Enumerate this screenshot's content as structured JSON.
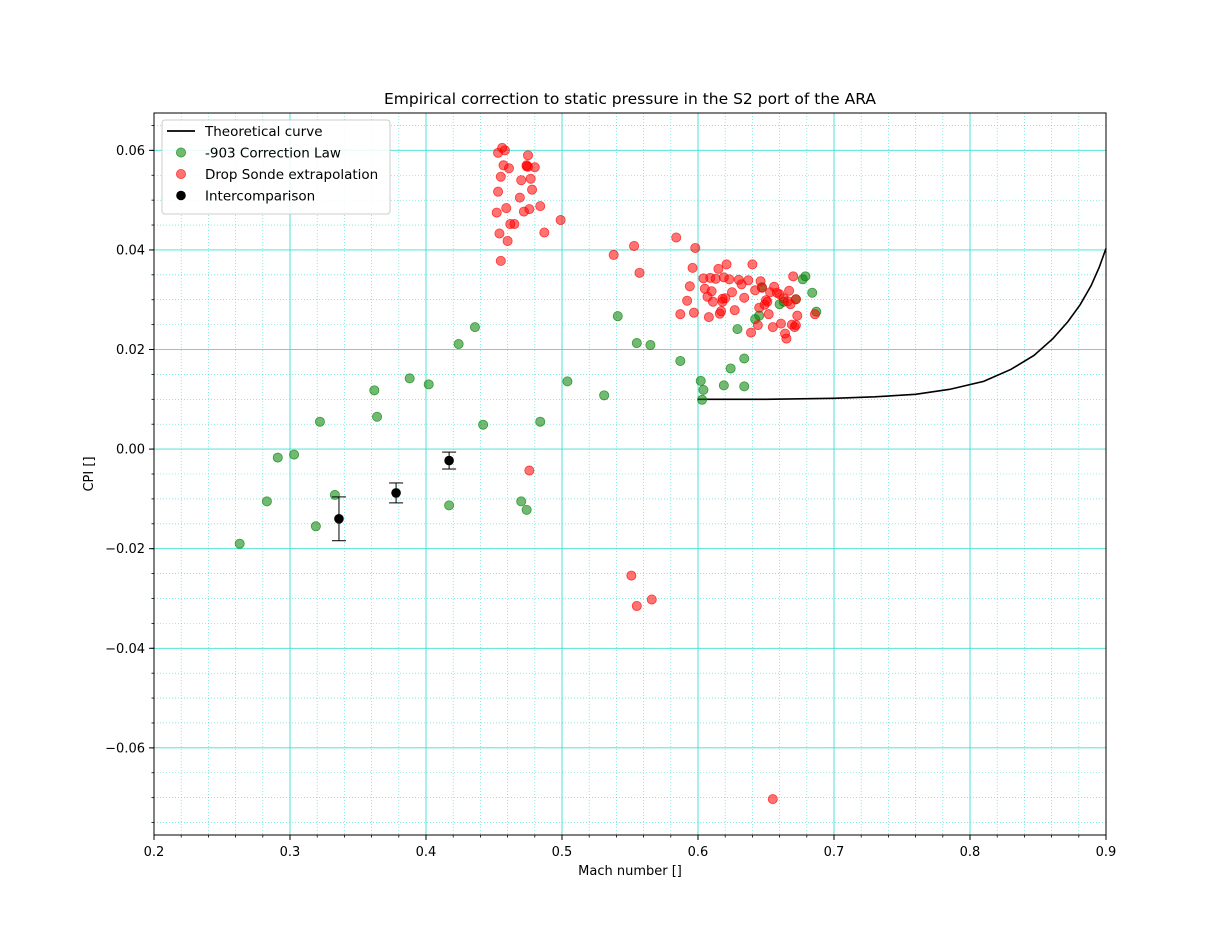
{
  "chart_data": {
    "type": "scatter",
    "title": "Empirical correction to static pressure in the S2 port of the ARA",
    "xlabel": "Mach number []",
    "ylabel": "CPI []",
    "xlim": [
      0.2,
      0.9
    ],
    "ylim": [
      -0.0775,
      0.0675
    ],
    "xticks": [
      0.2,
      0.3,
      0.4,
      0.5,
      0.6,
      0.7,
      0.8,
      0.9
    ],
    "yticks": [
      -0.06,
      -0.04,
      -0.02,
      0.0,
      0.02,
      0.04,
      0.06
    ],
    "xtick_labels": [
      "0.2",
      "0.3",
      "0.4",
      "0.5",
      "0.6",
      "0.7",
      "0.8",
      "0.9"
    ],
    "ytick_labels": [
      "−0.06",
      "−0.04",
      "−0.02",
      "0.00",
      "0.02",
      "0.04",
      "0.06"
    ],
    "grid": true,
    "legend_position": "top-left",
    "colors": {
      "grid": "#40e0d0",
      "theoretical": "#000000",
      "correction": "#008000",
      "dropsonde": "#ff0000",
      "intercomparison": "#000000"
    },
    "series": [
      {
        "name": "Theoretical curve",
        "kind": "line",
        "x": [
          0.6,
          0.65,
          0.7,
          0.73,
          0.76,
          0.785,
          0.81,
          0.83,
          0.847,
          0.861,
          0.872,
          0.881,
          0.889,
          0.895,
          0.9
        ],
        "y": [
          0.01,
          0.01,
          0.0102,
          0.0105,
          0.011,
          0.012,
          0.0136,
          0.016,
          0.0188,
          0.0222,
          0.0256,
          0.029,
          0.0328,
          0.0365,
          0.0403
        ]
      },
      {
        "name": "-903 Correction Law",
        "kind": "scatter",
        "x": [
          0.263,
          0.283,
          0.291,
          0.303,
          0.319,
          0.322,
          0.333,
          0.362,
          0.364,
          0.388,
          0.402,
          0.417,
          0.424,
          0.436,
          0.442,
          0.47,
          0.474,
          0.484,
          0.504,
          0.531,
          0.541,
          0.555,
          0.565,
          0.587,
          0.602,
          0.603,
          0.604,
          0.619,
          0.624,
          0.629,
          0.634,
          0.634,
          0.642,
          0.645,
          0.647,
          0.66,
          0.663,
          0.672,
          0.677,
          0.679,
          0.684,
          0.687
        ],
        "y": [
          -0.019,
          -0.0105,
          -0.0017,
          -0.0011,
          -0.0155,
          0.0055,
          -0.0092,
          0.0118,
          0.0065,
          0.0142,
          0.013,
          -0.0113,
          0.0211,
          0.0245,
          0.0049,
          -0.0105,
          -0.0122,
          0.0055,
          0.0136,
          0.0108,
          0.0267,
          0.0213,
          0.0209,
          0.0177,
          0.0137,
          0.0099,
          0.0119,
          0.0128,
          0.0162,
          0.0241,
          0.0182,
          0.0126,
          0.0261,
          0.0268,
          0.0325,
          0.0291,
          0.0296,
          0.0301,
          0.0341,
          0.0347,
          0.0314,
          0.0276
        ]
      },
      {
        "name": "Drop Sonde extrapolation",
        "kind": "scatter",
        "x": [
          0.452,
          0.453,
          0.453,
          0.454,
          0.455,
          0.455,
          0.456,
          0.457,
          0.458,
          0.459,
          0.46,
          0.461,
          0.462,
          0.465,
          0.469,
          0.47,
          0.472,
          0.474,
          0.474,
          0.475,
          0.475,
          0.476,
          0.477,
          0.478,
          0.48,
          0.484,
          0.487,
          0.499,
          0.538,
          0.553,
          0.557,
          0.584,
          0.587,
          0.592,
          0.594,
          0.596,
          0.597,
          0.598,
          0.604,
          0.605,
          0.607,
          0.608,
          0.609,
          0.61,
          0.611,
          0.613,
          0.615,
          0.616,
          0.617,
          0.618,
          0.618,
          0.619,
          0.62,
          0.621,
          0.623,
          0.625,
          0.627,
          0.63,
          0.632,
          0.634,
          0.637,
          0.639,
          0.64,
          0.642,
          0.644,
          0.645,
          0.646,
          0.647,
          0.649,
          0.65,
          0.651,
          0.652,
          0.653,
          0.655,
          0.656,
          0.658,
          0.66,
          0.661,
          0.663,
          0.664,
          0.665,
          0.666,
          0.667,
          0.668,
          0.669,
          0.67,
          0.671,
          0.672,
          0.672,
          0.673,
          0.686,
          0.476,
          0.551,
          0.555,
          0.566,
          0.655
        ],
        "y": [
          0.0475,
          0.0595,
          0.0517,
          0.0433,
          0.0378,
          0.0547,
          0.0605,
          0.057,
          0.06,
          0.0484,
          0.0418,
          0.0564,
          0.0452,
          0.0452,
          0.0505,
          0.054,
          0.0477,
          0.0568,
          0.057,
          0.059,
          0.0567,
          0.0482,
          0.0543,
          0.0521,
          0.0566,
          0.0488,
          0.0435,
          0.046,
          0.039,
          0.0408,
          0.0354,
          0.0425,
          0.0271,
          0.0298,
          0.0327,
          0.0364,
          0.0274,
          0.0404,
          0.0343,
          0.0322,
          0.0306,
          0.0265,
          0.0344,
          0.0317,
          0.0296,
          0.0342,
          0.0362,
          0.0272,
          0.0277,
          0.0302,
          0.0296,
          0.0345,
          0.0303,
          0.0371,
          0.0341,
          0.0315,
          0.0279,
          0.034,
          0.0331,
          0.0304,
          0.0339,
          0.0234,
          0.0371,
          0.0319,
          0.0249,
          0.0284,
          0.0337,
          0.0324,
          0.029,
          0.0299,
          0.0296,
          0.0271,
          0.0315,
          0.0245,
          0.0326,
          0.0314,
          0.0311,
          0.0252,
          0.0303,
          0.0232,
          0.0222,
          0.0297,
          0.0318,
          0.0291,
          0.025,
          0.0347,
          0.0245,
          0.0249,
          0.0301,
          0.0268,
          0.0271,
          -0.0043,
          -0.0254,
          -0.0315,
          -0.0302,
          -0.0703
        ]
      },
      {
        "name": "Intercomparison",
        "kind": "errorbar",
        "x": [
          0.336,
          0.378,
          0.417
        ],
        "y": [
          -0.014,
          -0.0088,
          -0.0023
        ],
        "yerr": [
          0.0044,
          0.002,
          0.0017
        ]
      }
    ]
  }
}
